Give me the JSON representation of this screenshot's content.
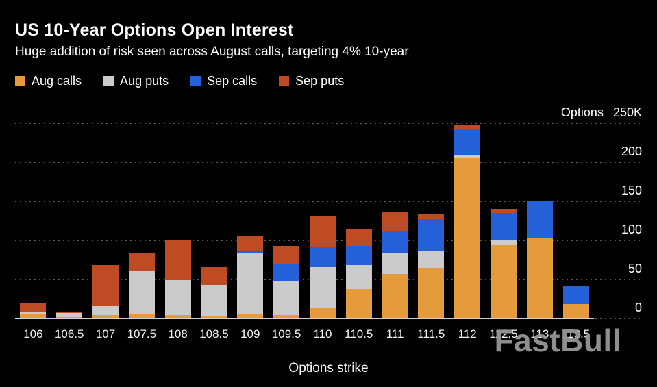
{
  "header": {
    "title": "US 10-Year Options Open Interest",
    "subtitle": "Huge addition of risk seen across August calls, targeting 4% 10-year"
  },
  "legend": {
    "items": [
      {
        "label": "Aug calls",
        "color": "#E59A3C"
      },
      {
        "label": "Aug puts",
        "color": "#CBCBCB"
      },
      {
        "label": "Sep calls",
        "color": "#2461D9"
      },
      {
        "label": "Sep puts",
        "color": "#BE4B24"
      }
    ]
  },
  "watermark": {
    "text": "FastBull"
  },
  "chart_data": {
    "type": "bar",
    "stacked": true,
    "title": "US 10-Year Options Open Interest",
    "subtitle": "Huge addition of risk seen across August calls, targeting 4% 10-year",
    "xlabel": "Options strike",
    "ylabel": "Options",
    "y_unit": "K",
    "ylim": [
      0,
      250
    ],
    "grid": "horizontal-dotted",
    "legend_position": "top",
    "background_color": "#000000",
    "y_ticks": [
      {
        "value": 0,
        "label": "0"
      },
      {
        "value": 50,
        "label": "50"
      },
      {
        "value": 100,
        "label": "100"
      },
      {
        "value": 150,
        "label": "150"
      },
      {
        "value": 200,
        "label": "200"
      },
      {
        "value": 250,
        "label": "250K",
        "prefix": "Options"
      }
    ],
    "categories": [
      "106",
      "106.5",
      "107",
      "107.5",
      "108",
      "108.5",
      "109",
      "109.5",
      "110",
      "110.5",
      "111",
      "111.5",
      "112",
      "112.5",
      "113",
      "113.5"
    ],
    "series": [
      {
        "name": "Aug calls",
        "color": "#E59A3C",
        "values": [
          5,
          2,
          4,
          5,
          4,
          3,
          6,
          4,
          14,
          38,
          57,
          65,
          205,
          95,
          103,
          18
        ]
      },
      {
        "name": "Aug puts",
        "color": "#CBCBCB",
        "values": [
          3,
          5,
          12,
          56,
          45,
          40,
          78,
          44,
          52,
          30,
          27,
          21,
          5,
          5,
          0,
          0
        ]
      },
      {
        "name": "Sep calls",
        "color": "#2461D9",
        "values": [
          0,
          0,
          0,
          0,
          0,
          0,
          2,
          21,
          26,
          25,
          28,
          41,
          33,
          35,
          47,
          24
        ]
      },
      {
        "name": "Sep puts",
        "color": "#BE4B24",
        "values": [
          12,
          2,
          52,
          23,
          51,
          23,
          20,
          24,
          40,
          21,
          25,
          7,
          5,
          5,
          0,
          0
        ]
      }
    ]
  }
}
